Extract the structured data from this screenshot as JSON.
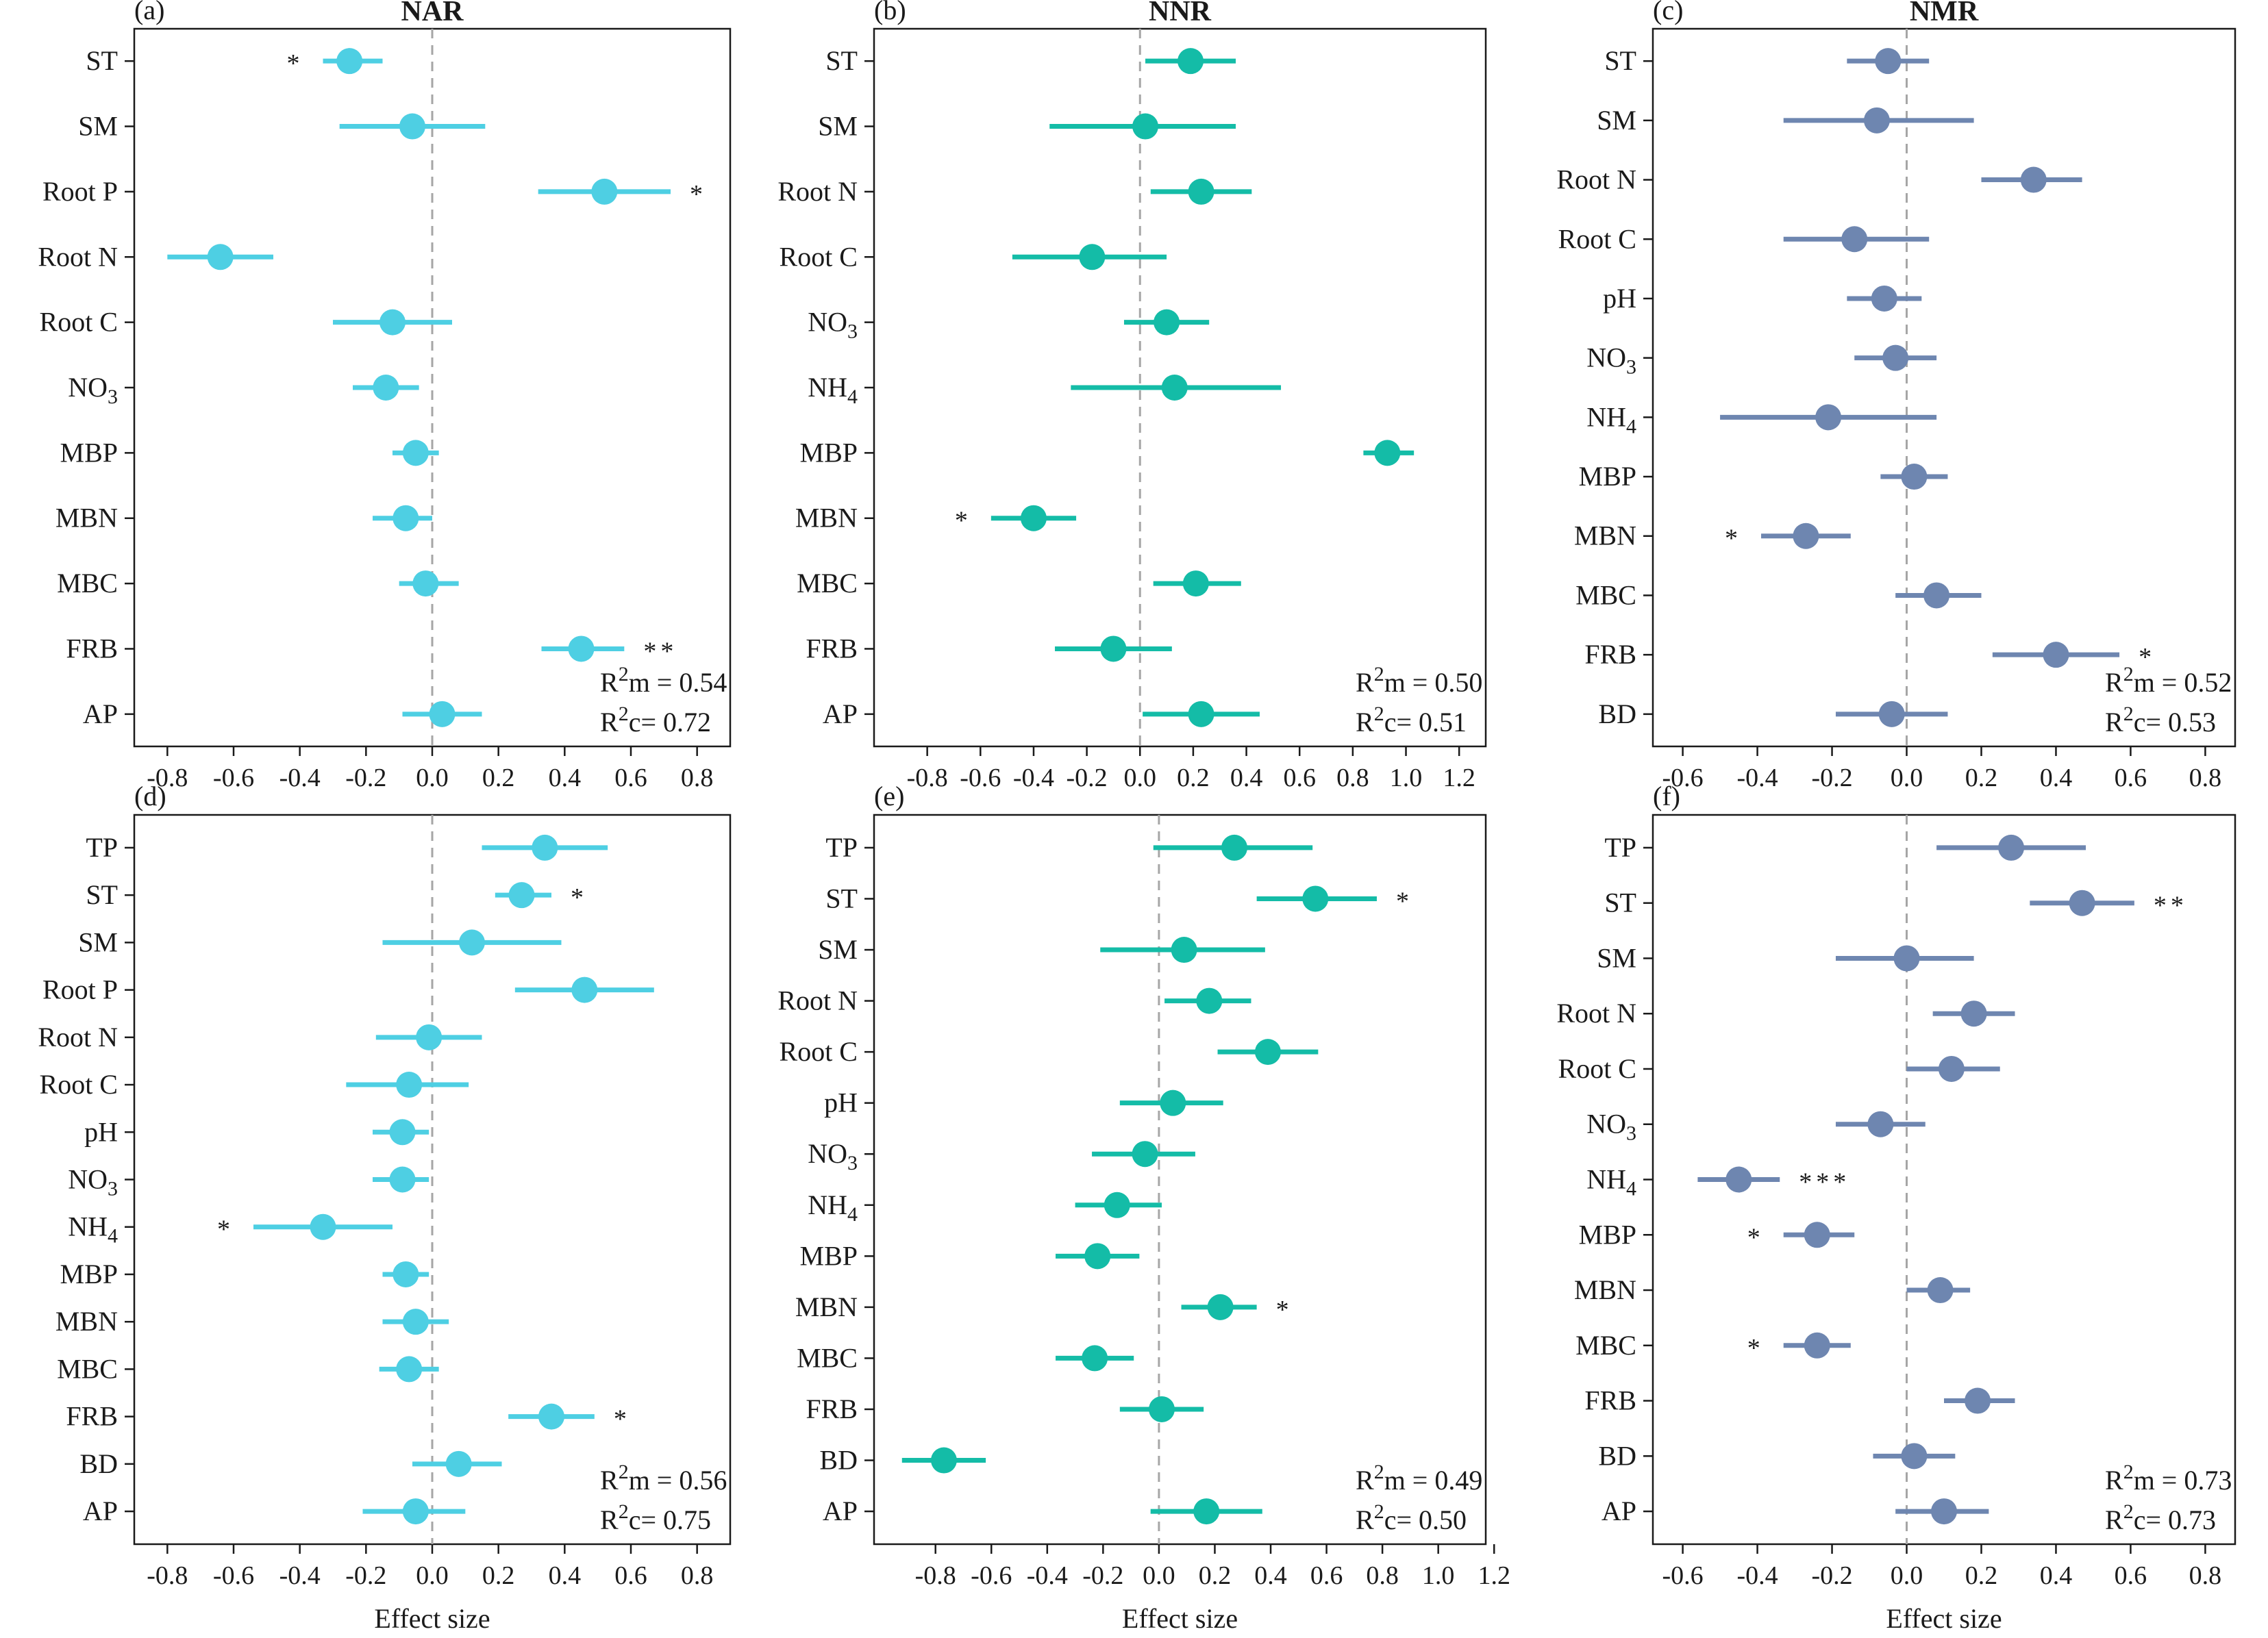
{
  "colors": {
    "NAR": "#4ecfe3",
    "NNR": "#14bca7",
    "NMR": "#6e86b0"
  },
  "chart_data": [
    {
      "id": "a",
      "panel_label": "(a)",
      "title": "NAR",
      "color_key": "NAR",
      "type": "scatter",
      "xlabel": "",
      "xlim": [
        -0.9,
        0.9
      ],
      "xticks": [
        "-0.8",
        "-0.6",
        "-0.4",
        "-0.2",
        "0.0",
        "0.2",
        "0.4",
        "0.6",
        "0.8"
      ],
      "xtick_values": [
        -0.8,
        -0.6,
        -0.4,
        -0.2,
        0.0,
        0.2,
        0.4,
        0.6,
        0.8
      ],
      "rows": [
        {
          "label": "ST",
          "value": -0.25,
          "lo": -0.33,
          "hi": -0.15,
          "sig": "*",
          "sig_side": "left"
        },
        {
          "label": "SM",
          "value": -0.06,
          "lo": -0.28,
          "hi": 0.16,
          "sig": "",
          "sig_side": "right"
        },
        {
          "label": "Root P",
          "value": 0.52,
          "lo": 0.32,
          "hi": 0.72,
          "sig": "*",
          "sig_side": "right"
        },
        {
          "label": "Root N",
          "value": -0.64,
          "lo": -0.8,
          "hi": -0.48,
          "sig": "",
          "sig_side": "right"
        },
        {
          "label": "Root C",
          "value": -0.12,
          "lo": -0.3,
          "hi": 0.06,
          "sig": "",
          "sig_side": "right"
        },
        {
          "label": "NO3",
          "value": -0.14,
          "lo": -0.24,
          "hi": -0.04,
          "sig": "",
          "sig_side": "right"
        },
        {
          "label": "MBP",
          "value": -0.05,
          "lo": -0.12,
          "hi": 0.02,
          "sig": "",
          "sig_side": "right"
        },
        {
          "label": "MBN",
          "value": -0.08,
          "lo": -0.18,
          "hi": 0.0,
          "sig": "",
          "sig_side": "right"
        },
        {
          "label": "MBC",
          "value": -0.02,
          "lo": -0.1,
          "hi": 0.08,
          "sig": "",
          "sig_side": "right"
        },
        {
          "label": "FRB",
          "value": 0.45,
          "lo": 0.33,
          "hi": 0.58,
          "sig": "**",
          "sig_side": "right"
        },
        {
          "label": "AP",
          "value": 0.03,
          "lo": -0.09,
          "hi": 0.15,
          "sig": "",
          "sig_side": "right"
        }
      ],
      "r2m": "R²m = 0.54",
      "r2c": "R²c= 0.72"
    },
    {
      "id": "b",
      "panel_label": "(b)",
      "title": "NNR",
      "color_key": "NNR",
      "type": "scatter",
      "xlabel": "",
      "xlim": [
        -1.0,
        1.3
      ],
      "xticks": [
        "-0.8",
        "-0.6",
        "-0.4",
        "-0.2",
        "0.0",
        "0.2",
        "0.4",
        "0.6",
        "0.8",
        "1.0",
        "1.2"
      ],
      "xtick_values": [
        -0.8,
        -0.6,
        -0.4,
        -0.2,
        0.0,
        0.2,
        0.4,
        0.6,
        0.8,
        1.0,
        1.2
      ],
      "rows": [
        {
          "label": "ST",
          "value": 0.19,
          "lo": 0.02,
          "hi": 0.36,
          "sig": "",
          "sig_side": "right"
        },
        {
          "label": "SM",
          "value": 0.02,
          "lo": -0.34,
          "hi": 0.36,
          "sig": "",
          "sig_side": "right"
        },
        {
          "label": "Root N",
          "value": 0.23,
          "lo": 0.04,
          "hi": 0.42,
          "sig": "",
          "sig_side": "right"
        },
        {
          "label": "Root C",
          "value": -0.18,
          "lo": -0.48,
          "hi": 0.1,
          "sig": "",
          "sig_side": "right"
        },
        {
          "label": "NO3",
          "value": 0.1,
          "lo": -0.06,
          "hi": 0.26,
          "sig": "",
          "sig_side": "right"
        },
        {
          "label": "NH4",
          "value": 0.13,
          "lo": -0.26,
          "hi": 0.53,
          "sig": "",
          "sig_side": "right"
        },
        {
          "label": "MBP",
          "value": 0.93,
          "lo": 0.84,
          "hi": 1.03,
          "sig": "",
          "sig_side": "right"
        },
        {
          "label": "MBN",
          "value": -0.4,
          "lo": -0.56,
          "hi": -0.24,
          "sig": "*",
          "sig_side": "left"
        },
        {
          "label": "MBC",
          "value": 0.21,
          "lo": 0.05,
          "hi": 0.38,
          "sig": "",
          "sig_side": "right"
        },
        {
          "label": "FRB",
          "value": -0.1,
          "lo": -0.32,
          "hi": 0.12,
          "sig": "",
          "sig_side": "right"
        },
        {
          "label": "AP",
          "value": 0.23,
          "lo": 0.01,
          "hi": 0.45,
          "sig": "",
          "sig_side": "right"
        }
      ],
      "r2m": "R²m = 0.50",
      "r2c": "R²c= 0.51"
    },
    {
      "id": "c",
      "panel_label": "(c)",
      "title": "NMR",
      "color_key": "NMR",
      "type": "scatter",
      "xlabel": "",
      "xlim": [
        -0.68,
        0.88
      ],
      "xticks": [
        "-0.6",
        "-0.4",
        "-0.2",
        "0.0",
        "0.2",
        "0.4",
        "0.6",
        "0.8"
      ],
      "xtick_values": [
        -0.6,
        -0.4,
        -0.2,
        0.0,
        0.2,
        0.4,
        0.6,
        0.8
      ],
      "rows": [
        {
          "label": "ST",
          "value": -0.05,
          "lo": -0.16,
          "hi": 0.06,
          "sig": "",
          "sig_side": "right"
        },
        {
          "label": "SM",
          "value": -0.08,
          "lo": -0.33,
          "hi": 0.18,
          "sig": "",
          "sig_side": "right"
        },
        {
          "label": "Root N",
          "value": 0.34,
          "lo": 0.2,
          "hi": 0.47,
          "sig": "",
          "sig_side": "right"
        },
        {
          "label": "Root C",
          "value": -0.14,
          "lo": -0.33,
          "hi": 0.06,
          "sig": "",
          "sig_side": "right"
        },
        {
          "label": "pH",
          "value": -0.06,
          "lo": -0.16,
          "hi": 0.04,
          "sig": "",
          "sig_side": "right"
        },
        {
          "label": "NO3",
          "value": -0.03,
          "lo": -0.14,
          "hi": 0.08,
          "sig": "",
          "sig_side": "right"
        },
        {
          "label": "NH4",
          "value": -0.21,
          "lo": -0.5,
          "hi": 0.08,
          "sig": "",
          "sig_side": "right"
        },
        {
          "label": "MBP",
          "value": 0.02,
          "lo": -0.07,
          "hi": 0.11,
          "sig": "",
          "sig_side": "right"
        },
        {
          "label": "MBN",
          "value": -0.27,
          "lo": -0.39,
          "hi": -0.15,
          "sig": "*",
          "sig_side": "left"
        },
        {
          "label": "MBC",
          "value": 0.08,
          "lo": -0.03,
          "hi": 0.2,
          "sig": "",
          "sig_side": "right"
        },
        {
          "label": "FRB",
          "value": 0.4,
          "lo": 0.23,
          "hi": 0.57,
          "sig": "*",
          "sig_side": "right"
        },
        {
          "label": "BD",
          "value": -0.04,
          "lo": -0.19,
          "hi": 0.11,
          "sig": "",
          "sig_side": "right"
        }
      ],
      "r2m": "R²m = 0.52",
      "r2c": "R²c= 0.53"
    },
    {
      "id": "d",
      "panel_label": "(d)",
      "title": "",
      "color_key": "NAR",
      "type": "scatter",
      "xlabel": "Effect size",
      "xlim": [
        -0.9,
        0.9
      ],
      "xticks": [
        "-0.8",
        "-0.6",
        "-0.4",
        "-0.2",
        "0.0",
        "0.2",
        "0.4",
        "0.6",
        "0.8"
      ],
      "xtick_values": [
        -0.8,
        -0.6,
        -0.4,
        -0.2,
        0.0,
        0.2,
        0.4,
        0.6,
        0.8
      ],
      "rows": [
        {
          "label": "TP",
          "value": 0.34,
          "lo": 0.15,
          "hi": 0.53,
          "sig": "",
          "sig_side": "right"
        },
        {
          "label": "ST",
          "value": 0.27,
          "lo": 0.19,
          "hi": 0.36,
          "sig": "*",
          "sig_side": "right"
        },
        {
          "label": "SM",
          "value": 0.12,
          "lo": -0.15,
          "hi": 0.39,
          "sig": "",
          "sig_side": "right"
        },
        {
          "label": "Root P",
          "value": 0.46,
          "lo": 0.25,
          "hi": 0.67,
          "sig": "",
          "sig_side": "right"
        },
        {
          "label": "Root N",
          "value": -0.01,
          "lo": -0.17,
          "hi": 0.15,
          "sig": "",
          "sig_side": "right"
        },
        {
          "label": "Root C",
          "value": -0.07,
          "lo": -0.26,
          "hi": 0.11,
          "sig": "",
          "sig_side": "right"
        },
        {
          "label": "pH",
          "value": -0.09,
          "lo": -0.18,
          "hi": -0.01,
          "sig": "",
          "sig_side": "right"
        },
        {
          "label": "NO3",
          "value": -0.09,
          "lo": -0.18,
          "hi": -0.01,
          "sig": "",
          "sig_side": "right"
        },
        {
          "label": "NH4",
          "value": -0.33,
          "lo": -0.54,
          "hi": -0.12,
          "sig": "*",
          "sig_side": "left"
        },
        {
          "label": "MBP",
          "value": -0.08,
          "lo": -0.15,
          "hi": -0.01,
          "sig": "",
          "sig_side": "right"
        },
        {
          "label": "MBN",
          "value": -0.05,
          "lo": -0.15,
          "hi": 0.05,
          "sig": "",
          "sig_side": "right"
        },
        {
          "label": "MBC",
          "value": -0.07,
          "lo": -0.16,
          "hi": 0.02,
          "sig": "",
          "sig_side": "right"
        },
        {
          "label": "FRB",
          "value": 0.36,
          "lo": 0.23,
          "hi": 0.49,
          "sig": "*",
          "sig_side": "right"
        },
        {
          "label": "BD",
          "value": 0.08,
          "lo": -0.06,
          "hi": 0.21,
          "sig": "",
          "sig_side": "right"
        },
        {
          "label": "AP",
          "value": -0.05,
          "lo": -0.21,
          "hi": 0.1,
          "sig": "",
          "sig_side": "right"
        }
      ],
      "r2m": "R²m = 0.56",
      "r2c": "R²c= 0.75"
    },
    {
      "id": "e",
      "panel_label": "(e)",
      "title": "",
      "color_key": "NNR",
      "type": "scatter",
      "xlabel": "Effect size",
      "xlim": [
        -1.02,
        1.17
      ],
      "xticks": [
        "-0.8",
        "-0.6",
        "-0.4",
        "-0.2",
        "0.0",
        "0.2",
        "0.4",
        "0.6",
        "0.8",
        "1.0",
        "1.2"
      ],
      "xtick_values": [
        -0.8,
        -0.6,
        -0.4,
        -0.2,
        0.0,
        0.2,
        0.4,
        0.6,
        0.8,
        1.0,
        1.2
      ],
      "rows": [
        {
          "label": "TP",
          "value": 0.27,
          "lo": -0.02,
          "hi": 0.55,
          "sig": "",
          "sig_side": "right"
        },
        {
          "label": "ST",
          "value": 0.56,
          "lo": 0.35,
          "hi": 0.78,
          "sig": "*",
          "sig_side": "right"
        },
        {
          "label": "SM",
          "value": 0.09,
          "lo": -0.21,
          "hi": 0.38,
          "sig": "",
          "sig_side": "right"
        },
        {
          "label": "Root N",
          "value": 0.18,
          "lo": 0.02,
          "hi": 0.33,
          "sig": "",
          "sig_side": "right"
        },
        {
          "label": "Root C",
          "value": 0.39,
          "lo": 0.21,
          "hi": 0.57,
          "sig": "",
          "sig_side": "right"
        },
        {
          "label": "pH",
          "value": 0.05,
          "lo": -0.14,
          "hi": 0.23,
          "sig": "",
          "sig_side": "right"
        },
        {
          "label": "NO3",
          "value": -0.05,
          "lo": -0.24,
          "hi": 0.13,
          "sig": "",
          "sig_side": "right"
        },
        {
          "label": "NH4",
          "value": -0.15,
          "lo": -0.3,
          "hi": 0.01,
          "sig": "",
          "sig_side": "right"
        },
        {
          "label": "MBP",
          "value": -0.22,
          "lo": -0.37,
          "hi": -0.07,
          "sig": "",
          "sig_side": "right"
        },
        {
          "label": "MBN",
          "value": 0.22,
          "lo": 0.08,
          "hi": 0.35,
          "sig": "*",
          "sig_side": "right"
        },
        {
          "label": "MBC",
          "value": -0.23,
          "lo": -0.37,
          "hi": -0.09,
          "sig": "",
          "sig_side": "right"
        },
        {
          "label": "FRB",
          "value": 0.01,
          "lo": -0.14,
          "hi": 0.16,
          "sig": "",
          "sig_side": "right"
        },
        {
          "label": "BD",
          "value": -0.77,
          "lo": -0.92,
          "hi": -0.62,
          "sig": "",
          "sig_side": "right"
        },
        {
          "label": "AP",
          "value": 0.17,
          "lo": -0.03,
          "hi": 0.37,
          "sig": "",
          "sig_side": "right"
        }
      ],
      "r2m": "R²m = 0.49",
      "r2c": "R²c= 0.50"
    },
    {
      "id": "f",
      "panel_label": "(f)",
      "title": "",
      "color_key": "NMR",
      "type": "scatter",
      "xlabel": "Effect size",
      "xlim": [
        -0.68,
        0.88
      ],
      "xticks": [
        "-0.6",
        "-0.4",
        "-0.2",
        "0.0",
        "0.2",
        "0.4",
        "0.6",
        "0.8"
      ],
      "xtick_values": [
        -0.6,
        -0.4,
        -0.2,
        0.0,
        0.2,
        0.4,
        0.6,
        0.8
      ],
      "rows": [
        {
          "label": "TP",
          "value": 0.28,
          "lo": 0.08,
          "hi": 0.48,
          "sig": "",
          "sig_side": "right"
        },
        {
          "label": "ST",
          "value": 0.47,
          "lo": 0.33,
          "hi": 0.61,
          "sig": "**",
          "sig_side": "right"
        },
        {
          "label": "SM",
          "value": 0.0,
          "lo": -0.19,
          "hi": 0.18,
          "sig": "",
          "sig_side": "right"
        },
        {
          "label": "Root N",
          "value": 0.18,
          "lo": 0.07,
          "hi": 0.29,
          "sig": "",
          "sig_side": "right"
        },
        {
          "label": "Root C",
          "value": 0.12,
          "lo": 0.0,
          "hi": 0.25,
          "sig": "",
          "sig_side": "right"
        },
        {
          "label": "NO3",
          "value": -0.07,
          "lo": -0.19,
          "hi": 0.05,
          "sig": "",
          "sig_side": "right"
        },
        {
          "label": "NH4",
          "value": -0.45,
          "lo": -0.56,
          "hi": -0.34,
          "sig": "***",
          "sig_side": "right"
        },
        {
          "label": "MBP",
          "value": -0.24,
          "lo": -0.33,
          "hi": -0.14,
          "sig": "*",
          "sig_side": "left"
        },
        {
          "label": "MBN",
          "value": 0.09,
          "lo": 0.0,
          "hi": 0.17,
          "sig": "",
          "sig_side": "right"
        },
        {
          "label": "MBC",
          "value": -0.24,
          "lo": -0.33,
          "hi": -0.15,
          "sig": "*",
          "sig_side": "left"
        },
        {
          "label": "FRB",
          "value": 0.19,
          "lo": 0.1,
          "hi": 0.29,
          "sig": "",
          "sig_side": "right"
        },
        {
          "label": "BD",
          "value": 0.02,
          "lo": -0.09,
          "hi": 0.13,
          "sig": "",
          "sig_side": "right"
        },
        {
          "label": "AP",
          "value": 0.1,
          "lo": -0.03,
          "hi": 0.22,
          "sig": "",
          "sig_side": "right"
        }
      ],
      "r2m": "R²m = 0.73",
      "r2c": "R²c= 0.73"
    }
  ]
}
